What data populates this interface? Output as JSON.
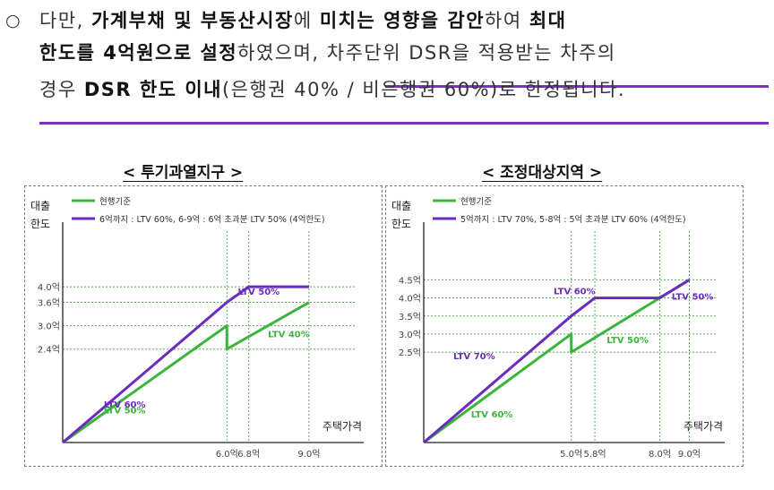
{
  "paragraph": {
    "bullet": "○",
    "line1": [
      {
        "t": "다만, ",
        "b": false
      },
      {
        "t": "가계부채 및 부동산시장",
        "b": true
      },
      {
        "t": "에 ",
        "b": false
      },
      {
        "t": "미치는 영향을 감안",
        "b": true
      },
      {
        "t": "하여 ",
        "b": false
      },
      {
        "t": "최대",
        "b": true
      }
    ],
    "line2": [
      {
        "t": "한도를 4억원으로 설정",
        "b": true
      },
      {
        "t": "하였으며, 차주단위 DSR을 적용받는 차주의",
        "b": false
      }
    ],
    "line3": [
      {
        "t": "경우 ",
        "b": false
      },
      {
        "t": "DSR 한도 이내",
        "b": true
      },
      {
        "t": "(은행권 40% / 비은행권 60%)로 한정됩니다.",
        "b": false
      }
    ]
  },
  "colors": {
    "current": "#3cb43c",
    "new": "#6a2bbf",
    "grid": "#5aa85a",
    "axis": "#222222"
  },
  "chart_data": [
    {
      "type": "line",
      "title": "< 투기과열지구 >",
      "ylabel": "대출 한도",
      "xlabel": "주택가격",
      "ytick_labels": [
        {
          "v": 2.4,
          "label": "2.4억"
        },
        {
          "v": 3.0,
          "label": "3.0억"
        },
        {
          "v": 3.6,
          "label": "3.6억"
        },
        {
          "v": 4.0,
          "label": "4.0억"
        }
      ],
      "xtick_labels": [
        {
          "v": 6.0,
          "label": "6.0억"
        },
        {
          "v": 6.8,
          "label": "6.8억"
        },
        {
          "v": 9.0,
          "label": "9.0억"
        }
      ],
      "xlim": [
        0,
        11
      ],
      "ylim": [
        0,
        5.2
      ],
      "series": [
        {
          "name": "현행기준",
          "color": "current",
          "x": [
            0,
            6.0,
            6.0,
            9.0
          ],
          "y": [
            0,
            3.0,
            2.4,
            3.6
          ]
        },
        {
          "name": "6억까지 : LTV 60%, 6-9억 : 6억 초과분 LTV 50% (4억한도)",
          "color": "new",
          "x": [
            0,
            6.0,
            6.8,
            9.0
          ],
          "y": [
            0,
            3.6,
            4.0,
            4.0
          ]
        }
      ],
      "annotations": [
        {
          "text": "LTV 60%",
          "color": "new",
          "x": 1.5,
          "y": 0.9
        },
        {
          "text": "LTV 50%",
          "color": "current",
          "x": 1.5,
          "y": 0.75
        },
        {
          "text": "LTV 50%",
          "color": "new",
          "x": 6.4,
          "y": 3.8
        },
        {
          "text": "LTV 40%",
          "color": "current",
          "x": 7.5,
          "y": 2.7
        }
      ]
    },
    {
      "type": "line",
      "title": "< 조정대상지역 >",
      "ylabel": "대출 한도",
      "xlabel": "주택가격",
      "ytick_labels": [
        {
          "v": 2.5,
          "label": "2.5억"
        },
        {
          "v": 3.0,
          "label": "3.0억"
        },
        {
          "v": 3.5,
          "label": "3.5억"
        },
        {
          "v": 4.0,
          "label": "4.0억"
        },
        {
          "v": 4.5,
          "label": "4.5억"
        }
      ],
      "xtick_labels": [
        {
          "v": 5.0,
          "label": "5.0억"
        },
        {
          "v": 5.8,
          "label": "5.8억"
        },
        {
          "v": 8.0,
          "label": "8.0억"
        },
        {
          "v": 9.0,
          "label": "9.0억"
        }
      ],
      "xlim": [
        0,
        10.2
      ],
      "ylim": [
        0,
        5.6
      ],
      "series": [
        {
          "name": "현행기준",
          "color": "current",
          "x": [
            0,
            5.0,
            5.0,
            9.0
          ],
          "y": [
            0,
            3.0,
            2.5,
            4.5
          ]
        },
        {
          "name": "5억까지 : LTV 70%, 5-8억 : 5억 초과분 LTV 60% (4억한도)",
          "color": "new",
          "x": [
            0,
            5.0,
            5.8,
            8.0,
            9.0
          ],
          "y": [
            0,
            3.5,
            4.0,
            4.0,
            4.5
          ]
        }
      ],
      "annotations": [
        {
          "text": "LTV 70%",
          "color": "new",
          "x": 1.0,
          "y": 2.3
        },
        {
          "text": "LTV 60%",
          "color": "current",
          "x": 1.6,
          "y": 0.7
        },
        {
          "text": "LTV 60%",
          "color": "new",
          "x": 4.4,
          "y": 4.1
        },
        {
          "text": "LTV 50%",
          "color": "current",
          "x": 6.2,
          "y": 2.75
        },
        {
          "text": "LTV 50%",
          "color": "new",
          "x": 8.4,
          "y": 3.95
        }
      ]
    }
  ]
}
